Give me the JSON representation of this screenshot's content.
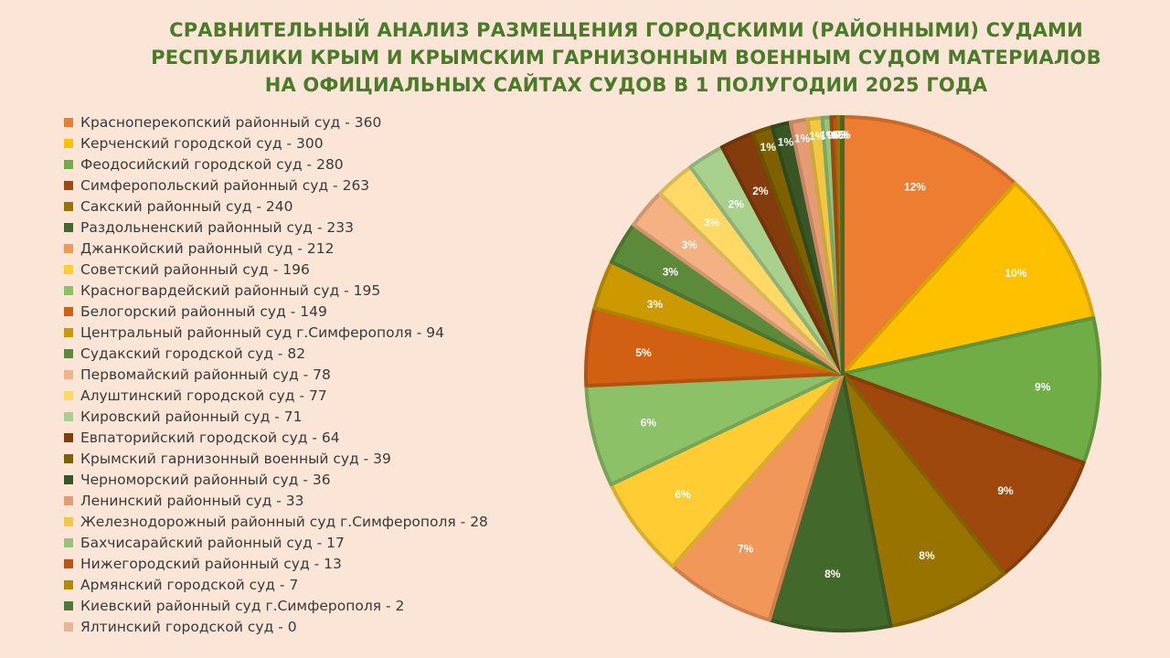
{
  "chart_data": {
    "type": "pie",
    "title": "СРАВНИТЕЛЬНЫЙ АНАЛИЗ РАЗМЕЩЕНИЯ ГОРОДСКИМИ (РАЙОННЫМИ) СУДАМИ РЕСПУБЛИКИ КРЫМ И КРЫМСКИМ ГАРНИЗОННЫМ ВОЕННЫМ СУДОМ МАТЕРИАЛОВ НА ОФИЦИАЛЬНЫХ САЙТАХ СУДОВ В 1 ПОЛУГОДИИ 2025 ГОДА",
    "legend_position": "left",
    "slices": [
      {
        "label": "Красноперекопский  районный  суд - 360",
        "value": 360,
        "percent_label": "12%",
        "color": "#ed7d31"
      },
      {
        "label": "Керченский  городской суд - 300",
        "value": 300,
        "percent_label": "10%",
        "color": "#ffc000"
      },
      {
        "label": "Феодосийский  городской суд - 280",
        "value": 280,
        "percent_label": "9%",
        "color": "#70ad47"
      },
      {
        "label": "Симферопольский  районный  суд - 263",
        "value": 263,
        "percent_label": "9%",
        "color": "#9e480e"
      },
      {
        "label": "Сакский  районный  суд - 240",
        "value": 240,
        "percent_label": "8%",
        "color": "#997300"
      },
      {
        "label": "Раздольненский  районный  суд - 233",
        "value": 233,
        "percent_label": "8%",
        "color": "#43682b"
      },
      {
        "label": "Джанкойский  районный  суд - 212",
        "value": 212,
        "percent_label": "7%",
        "color": "#f1975a"
      },
      {
        "label": "Советский  районный  суд - 196",
        "value": 196,
        "percent_label": "6%",
        "color": "#ffcd33"
      },
      {
        "label": "Красногвардейский  районный  суд - 195",
        "value": 195,
        "percent_label": "6%",
        "color": "#8cc168"
      },
      {
        "label": "Белогорский  районный  суд - 149",
        "value": 149,
        "percent_label": "5%",
        "color": "#d26012"
      },
      {
        "label": "Центральный  районный  суд г.Симферополя  - 94",
        "value": 94,
        "percent_label": "3%",
        "color": "#cc9a00"
      },
      {
        "label": "Судакский  городской суд - 82",
        "value": 82,
        "percent_label": "3%",
        "color": "#5a8a3a"
      },
      {
        "label": "Первомайский  районный  суд - 78",
        "value": 78,
        "percent_label": "3%",
        "color": "#f4b183"
      },
      {
        "label": "Алуштинский  городской суд - 77",
        "value": 77,
        "percent_label": "3%",
        "color": "#ffd966"
      },
      {
        "label": "Кировский  районный  суд - 71",
        "value": 71,
        "percent_label": "2%",
        "color": "#a9d18e"
      },
      {
        "label": "Евпаторийский  городской суд - 64",
        "value": 64,
        "percent_label": "2%",
        "color": "#843c0c"
      },
      {
        "label": "Крымский  гарнизонный  военный  суд - 39",
        "value": 39,
        "percent_label": "1%",
        "color": "#7f6000"
      },
      {
        "label": "Черноморский  районный  суд - 36",
        "value": 36,
        "percent_label": "1%",
        "color": "#375623"
      },
      {
        "label": "Ленинский  районный  суд - 33",
        "value": 33,
        "percent_label": "1%",
        "color": "#e59c74"
      },
      {
        "label": "Железнодорожный  районный  суд г.Симферополя  - 28",
        "value": 28,
        "percent_label": "1%",
        "color": "#f2c744"
      },
      {
        "label": "Бахчисарайский  районный  суд - 17",
        "value": 17,
        "percent_label": "1%",
        "color": "#92c47a"
      },
      {
        "label": "Нижегородский  районный  суд - 13",
        "value": 13,
        "percent_label": "0%",
        "color": "#b85415"
      },
      {
        "label": "Армянский  городской суд - 7",
        "value": 7,
        "percent_label": "0%",
        "color": "#b08a00"
      },
      {
        "label": "Киевский  районный  суд г.Симферополя  - 2",
        "value": 2,
        "percent_label": "0%",
        "color": "#4f7a32"
      },
      {
        "label": "Ялтинский  городской суд - 0",
        "value": 0,
        "percent_label": "0%",
        "color": "#e8b596"
      }
    ]
  }
}
